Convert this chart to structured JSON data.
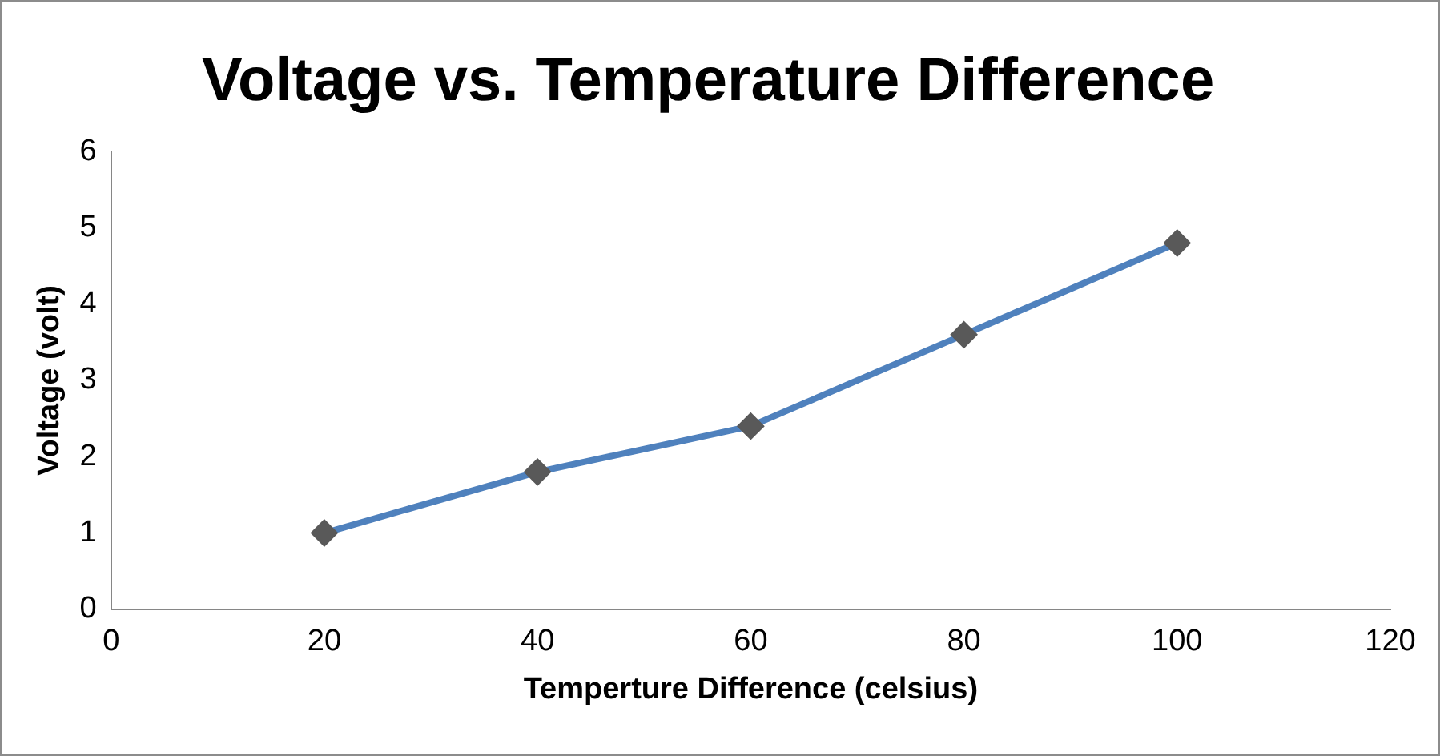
{
  "chart_data": {
    "type": "line",
    "title": "Voltage vs. Temperature Difference",
    "xlabel": "Temperture Difference (celsius)",
    "ylabel": "Voltage (volt)",
    "x": [
      20,
      40,
      60,
      80,
      100
    ],
    "series": [
      {
        "color": "#4f81bd",
        "values": [
          1.0,
          1.8,
          2.4,
          3.6,
          4.8
        ]
      }
    ],
    "xlim": [
      0,
      120
    ],
    "xticks": [
      0,
      20,
      40,
      60,
      80,
      100,
      120
    ],
    "ylim": [
      0,
      6
    ],
    "yticks": [
      0,
      1,
      2,
      3,
      4,
      5,
      6
    ],
    "grid": false,
    "legend": false,
    "marker": "diamond",
    "line_style": "solid"
  }
}
